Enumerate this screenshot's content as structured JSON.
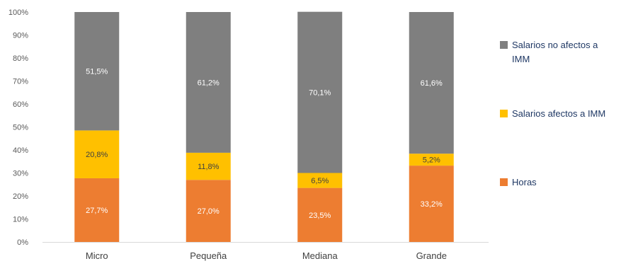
{
  "chart_data": {
    "type": "bar",
    "stacked": true,
    "categories": [
      "Micro",
      "Pequeña",
      "Mediana",
      "Grande"
    ],
    "ylim": [
      0,
      100
    ],
    "yticks": [
      "0%",
      "10%",
      "20%",
      "30%",
      "40%",
      "50%",
      "60%",
      "70%",
      "80%",
      "90%",
      "100%"
    ],
    "grid": false,
    "legend_position": "right",
    "series": [
      {
        "name": "Horas",
        "color": "#ED7D31",
        "values": [
          27.7,
          27.0,
          23.5,
          33.2
        ],
        "labels": [
          "27,7%",
          "27,0%",
          "23,5%",
          "33,2%"
        ]
      },
      {
        "name": "Salarios afectos a IMM",
        "color": "#FFC000",
        "values": [
          20.8,
          11.8,
          6.5,
          5.2
        ],
        "labels": [
          "20,8%",
          "11,8%",
          "6,5%",
          "5,2%"
        ]
      },
      {
        "name": "Salarios no afectos a IMM",
        "color": "#7F7F7F",
        "values": [
          51.5,
          61.2,
          70.1,
          61.6
        ],
        "labels": [
          "51,5%",
          "61,2%",
          "70,1%",
          "61,6%"
        ]
      }
    ]
  }
}
